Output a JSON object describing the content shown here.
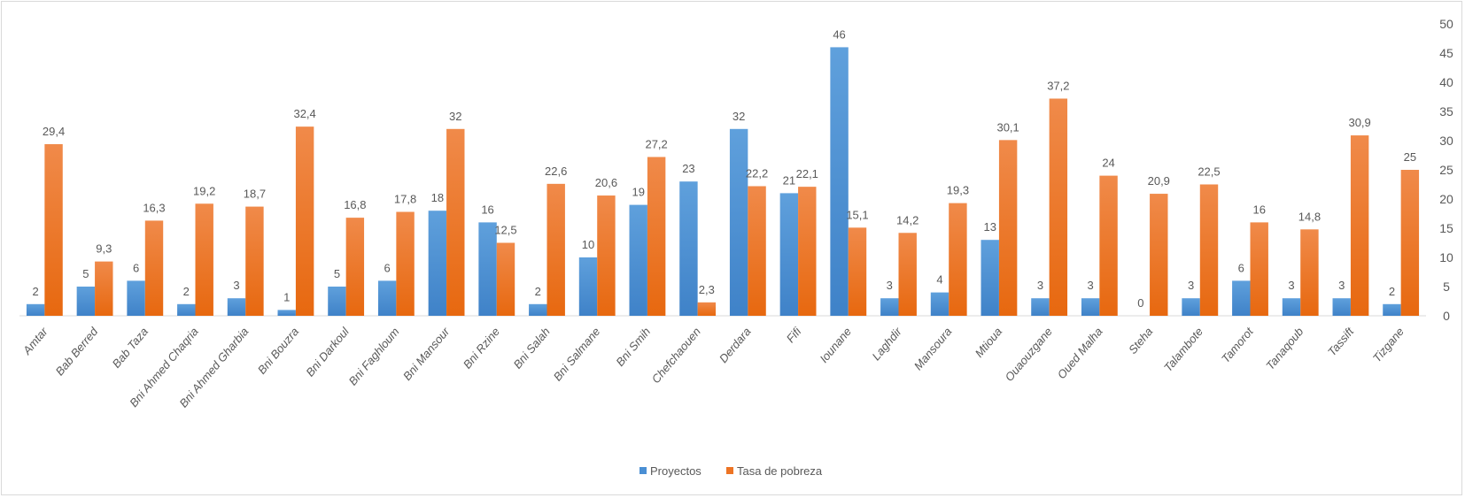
{
  "chart_data": {
    "type": "bar",
    "title": "",
    "xlabel": "",
    "ylabel": "",
    "ylim": [
      0,
      50
    ],
    "yticks": [
      0,
      5,
      10,
      15,
      20,
      25,
      30,
      35,
      40,
      45,
      50
    ],
    "y_axis_position": "right",
    "grid": false,
    "legend_position": "bottom",
    "categories": [
      "Amtar",
      "Bab Berred",
      "Bab Taza",
      "Bni Ahmed Chaqria",
      "Bni Ahmed Gharbia",
      "Bni Bouzra",
      "Bni Darkoul",
      "Bni Faghloum",
      "Bni Mansour",
      "Bni Rzine",
      "Bni Salah",
      "Bni Salmane",
      "Bni Smih",
      "Chefchaouen",
      "Derdara",
      "Fifi",
      "Iounane",
      "Laghdir",
      "Mansoura",
      "Mtioua",
      "Ouaouzgane",
      "Oued Malha",
      "Steha",
      "Talambote",
      "Tamorot",
      "Tanaqoub",
      "Tassift",
      "Tizgane"
    ],
    "series": [
      {
        "name": "Proyectos",
        "color": "#4a8fd4",
        "values": [
          2,
          5,
          6,
          2,
          3,
          1,
          5,
          6,
          18,
          16,
          2,
          10,
          19,
          23,
          32,
          21,
          46,
          3,
          4,
          13,
          3,
          3,
          0,
          3,
          6,
          3,
          3,
          2
        ],
        "labels": [
          "2",
          "5",
          "6",
          "2",
          "3",
          "1",
          "5",
          "6",
          "18",
          "16",
          "2",
          "10",
          "19",
          "23",
          "32",
          "21",
          "46",
          "3",
          "4",
          "13",
          "3",
          "3",
          "0",
          "3",
          "6",
          "3",
          "3",
          "2"
        ]
      },
      {
        "name": "Tasa de pobreza",
        "color": "#ed7424",
        "values": [
          29.4,
          9.3,
          16.3,
          19.2,
          18.7,
          32.4,
          16.8,
          17.8,
          32,
          12.5,
          22.6,
          20.6,
          27.2,
          2.3,
          22.2,
          22.1,
          15.1,
          14.2,
          19.3,
          30.1,
          37.2,
          24,
          20.9,
          22.5,
          16,
          14.8,
          30.9,
          25
        ],
        "labels": [
          "29,4",
          "9,3",
          "16,3",
          "19,2",
          "18,7",
          "32,4",
          "16,8",
          "17,8",
          "32",
          "12,5",
          "22,6",
          "20,6",
          "27,2",
          "2,3",
          "22,2",
          "22,1",
          "15,1",
          "14,2",
          "19,3",
          "30,1",
          "37,2",
          "24",
          "20,9",
          "22,5",
          "16",
          "14,8",
          "30,9",
          "25"
        ]
      }
    ]
  }
}
